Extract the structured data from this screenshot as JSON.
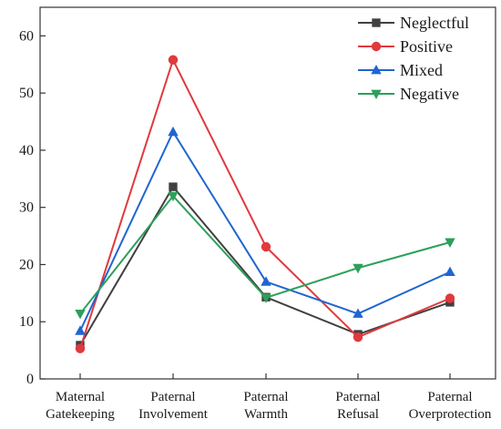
{
  "chart_data": {
    "type": "line",
    "categories": [
      [
        "Maternal",
        "Gatekeeping"
      ],
      [
        "Paternal",
        "Involvement"
      ],
      [
        "Paternal",
        "Warmth"
      ],
      [
        "Paternal",
        "Refusal"
      ],
      [
        "Paternal",
        "Overprotection"
      ]
    ],
    "ylim": [
      0,
      65
    ],
    "yticks": [
      0,
      10,
      20,
      30,
      40,
      50,
      60
    ],
    "grid": false,
    "legend_position": "top-right",
    "series": [
      {
        "name": "Neglectful",
        "color": "#404040",
        "marker": "square",
        "values": [
          5.9,
          33.6,
          14.3,
          7.8,
          13.4
        ]
      },
      {
        "name": "Positive",
        "color": "#e0393e",
        "marker": "circle",
        "values": [
          5.3,
          55.8,
          23.1,
          7.3,
          14.1
        ]
      },
      {
        "name": "Mixed",
        "color": "#1f66d1",
        "marker": "triangle-up",
        "values": [
          8.4,
          43.2,
          17.0,
          11.4,
          18.7
        ]
      },
      {
        "name": "Negative",
        "color": "#2ca05a",
        "marker": "triangle-down",
        "values": [
          11.4,
          32.0,
          14.2,
          19.4,
          23.9
        ]
      }
    ]
  }
}
